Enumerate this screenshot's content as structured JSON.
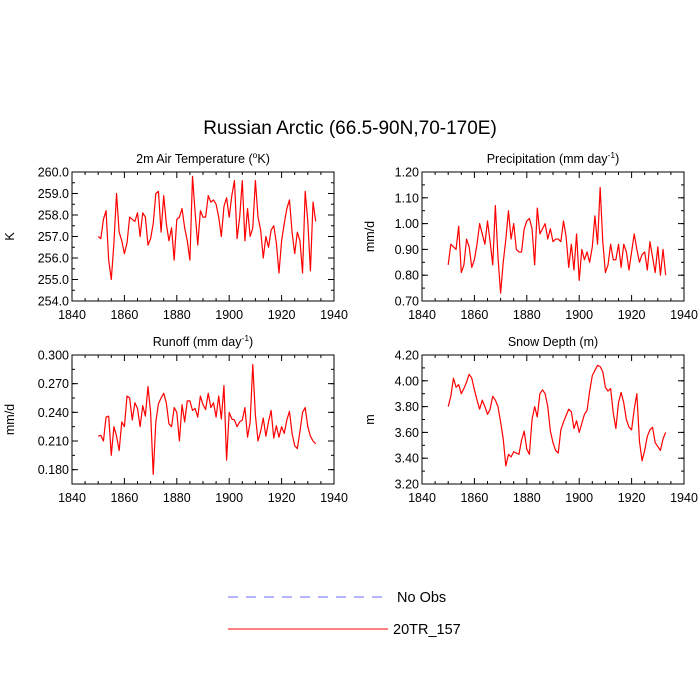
{
  "title": "Russian Arctic (66.5-90N,70-170E)",
  "legend": [
    {
      "label": "No Obs",
      "color": "#6b6bff",
      "dashed": true
    },
    {
      "label": "20TR_157",
      "color": "#ff0000",
      "dashed": false
    }
  ],
  "chart_data": [
    {
      "type": "line",
      "title_main": "2m Air Temperature (",
      "title_sup": "o",
      "title_tail": "K)",
      "ylabel": "K",
      "xlim": [
        1840,
        1940
      ],
      "ylim": [
        254,
        260
      ],
      "xticks": [
        1840,
        1860,
        1880,
        1900,
        1920,
        1940
      ],
      "yticks": [
        "254.0",
        "255.0",
        "256.0",
        "257.0",
        "258.0",
        "259.0",
        "260.0"
      ],
      "ytick_values": [
        254,
        255,
        256,
        257,
        258,
        259,
        260
      ],
      "series": [
        {
          "name": "20TR_157",
          "color": "#ff0000",
          "x": [
            1850,
            1851,
            1852,
            1853,
            1854,
            1855,
            1856,
            1857,
            1858,
            1859,
            1860,
            1861,
            1862,
            1863,
            1864,
            1865,
            1866,
            1867,
            1868,
            1869,
            1870,
            1871,
            1872,
            1873,
            1874,
            1875,
            1876,
            1877,
            1878,
            1879,
            1880,
            1881,
            1882,
            1883,
            1884,
            1885,
            1886,
            1887,
            1888,
            1889,
            1890,
            1891,
            1892,
            1893,
            1894,
            1895,
            1896,
            1897,
            1898,
            1899,
            1900,
            1901,
            1902,
            1903,
            1904,
            1905,
            1906,
            1907,
            1908,
            1909,
            1910,
            1911,
            1912,
            1913,
            1914,
            1915,
            1916,
            1917,
            1918,
            1919,
            1920,
            1921,
            1922,
            1923,
            1924,
            1925,
            1926,
            1927,
            1928,
            1929,
            1930,
            1931,
            1932,
            1933
          ],
          "values": [
            257.0,
            256.9,
            257.8,
            258.2,
            255.9,
            255.0,
            256.7,
            259.0,
            257.2,
            256.8,
            256.2,
            256.7,
            257.9,
            257.8,
            257.7,
            258.1,
            257.0,
            258.1,
            257.9,
            256.6,
            256.9,
            257.6,
            259.0,
            259.1,
            257.2,
            258.9,
            257.6,
            256.8,
            257.4,
            255.9,
            257.8,
            257.9,
            258.3,
            257.4,
            256.8,
            255.9,
            259.8,
            258.1,
            256.6,
            258.2,
            257.9,
            257.9,
            258.9,
            258.6,
            258.7,
            258.5,
            257.9,
            257.0,
            258.4,
            258.8,
            257.9,
            258.9,
            259.6,
            256.9,
            257.9,
            259.6,
            256.8,
            258.3,
            257.0,
            257.4,
            259.6,
            257.9,
            257.3,
            256.0,
            257.0,
            256.5,
            257.3,
            257.5,
            256.7,
            255.3,
            256.8,
            257.6,
            258.3,
            258.7,
            257.2,
            256.2,
            257.2,
            256.8,
            255.3,
            259.1,
            257.7,
            255.4,
            258.6,
            257.7
          ]
        }
      ]
    },
    {
      "type": "line",
      "title_main": "Precipitation (mm day",
      "title_sup": "-1",
      "title_tail": ")",
      "ylabel": "mm/d",
      "xlim": [
        1840,
        1940
      ],
      "ylim": [
        0.7,
        1.2
      ],
      "xticks": [
        1840,
        1860,
        1880,
        1900,
        1920,
        1940
      ],
      "yticks": [
        "0.70",
        "0.80",
        "0.90",
        "1.00",
        "1.10",
        "1.20"
      ],
      "ytick_values": [
        0.7,
        0.8,
        0.9,
        1.0,
        1.1,
        1.2
      ],
      "series": [
        {
          "name": "20TR_157",
          "color": "#ff0000",
          "x": [
            1850,
            1851,
            1852,
            1853,
            1854,
            1855,
            1856,
            1857,
            1858,
            1859,
            1860,
            1861,
            1862,
            1863,
            1864,
            1865,
            1866,
            1867,
            1868,
            1869,
            1870,
            1871,
            1872,
            1873,
            1874,
            1875,
            1876,
            1877,
            1878,
            1879,
            1880,
            1881,
            1882,
            1883,
            1884,
            1885,
            1886,
            1887,
            1888,
            1889,
            1890,
            1891,
            1892,
            1893,
            1894,
            1895,
            1896,
            1897,
            1898,
            1899,
            1900,
            1901,
            1902,
            1903,
            1904,
            1905,
            1906,
            1907,
            1908,
            1909,
            1910,
            1911,
            1912,
            1913,
            1914,
            1915,
            1916,
            1917,
            1918,
            1919,
            1920,
            1921,
            1922,
            1923,
            1924,
            1925,
            1926,
            1927,
            1928,
            1929,
            1930,
            1931,
            1932,
            1933
          ],
          "values": [
            0.84,
            0.92,
            0.91,
            0.9,
            0.99,
            0.81,
            0.84,
            0.94,
            0.91,
            0.83,
            0.86,
            0.92,
            1.0,
            0.96,
            0.92,
            1.01,
            0.93,
            0.84,
            1.07,
            0.87,
            0.73,
            0.85,
            0.94,
            1.05,
            0.94,
            1.0,
            0.9,
            0.89,
            0.89,
            0.98,
            1.01,
            1.02,
            0.98,
            0.84,
            1.06,
            0.96,
            0.98,
            1.0,
            0.94,
            0.98,
            0.93,
            0.94,
            0.94,
            0.93,
            1.01,
            0.95,
            0.83,
            0.92,
            0.82,
            0.96,
            0.78,
            0.9,
            0.86,
            0.89,
            0.85,
            0.91,
            1.03,
            0.92,
            1.14,
            0.93,
            0.81,
            0.84,
            0.92,
            0.86,
            0.86,
            0.92,
            0.83,
            0.92,
            0.89,
            0.82,
            0.89,
            0.96,
            0.9,
            0.85,
            0.88,
            0.89,
            0.82,
            0.93,
            0.87,
            0.81,
            0.91,
            0.8,
            0.9,
            0.8
          ]
        }
      ]
    },
    {
      "type": "line",
      "title_main": "Runoff (mm day",
      "title_sup": "-1",
      "title_tail": ")",
      "ylabel": "mm/d",
      "xlim": [
        1840,
        1940
      ],
      "ylim": [
        0.165,
        0.3
      ],
      "xticks": [
        1840,
        1860,
        1880,
        1900,
        1920,
        1940
      ],
      "yticks": [
        "0.180",
        "0.210",
        "0.240",
        "0.270",
        "0.300"
      ],
      "ytick_values": [
        0.18,
        0.21,
        0.24,
        0.27,
        0.3
      ],
      "series": [
        {
          "name": "20TR_157",
          "color": "#ff0000",
          "x": [
            1850,
            1851,
            1852,
            1853,
            1854,
            1855,
            1856,
            1857,
            1858,
            1859,
            1860,
            1861,
            1862,
            1863,
            1864,
            1865,
            1866,
            1867,
            1868,
            1869,
            1870,
            1871,
            1872,
            1873,
            1874,
            1875,
            1876,
            1877,
            1878,
            1879,
            1880,
            1881,
            1882,
            1883,
            1884,
            1885,
            1886,
            1887,
            1888,
            1889,
            1890,
            1891,
            1892,
            1893,
            1894,
            1895,
            1896,
            1897,
            1898,
            1899,
            1900,
            1901,
            1902,
            1903,
            1904,
            1905,
            1906,
            1907,
            1908,
            1909,
            1910,
            1911,
            1912,
            1913,
            1914,
            1915,
            1916,
            1917,
            1918,
            1919,
            1920,
            1921,
            1922,
            1923,
            1924,
            1925,
            1926,
            1927,
            1928,
            1929,
            1930,
            1931,
            1932,
            1933
          ],
          "values": [
            0.215,
            0.216,
            0.21,
            0.235,
            0.236,
            0.195,
            0.225,
            0.215,
            0.2,
            0.23,
            0.225,
            0.257,
            0.255,
            0.232,
            0.25,
            0.244,
            0.225,
            0.247,
            0.236,
            0.267,
            0.24,
            0.175,
            0.23,
            0.249,
            0.255,
            0.26,
            0.25,
            0.228,
            0.225,
            0.245,
            0.24,
            0.21,
            0.248,
            0.23,
            0.252,
            0.252,
            0.242,
            0.244,
            0.235,
            0.257,
            0.248,
            0.243,
            0.26,
            0.245,
            0.25,
            0.235,
            0.257,
            0.233,
            0.268,
            0.19,
            0.24,
            0.233,
            0.232,
            0.225,
            0.23,
            0.232,
            0.245,
            0.214,
            0.23,
            0.29,
            0.237,
            0.21,
            0.22,
            0.234,
            0.215,
            0.23,
            0.242,
            0.213,
            0.226,
            0.214,
            0.225,
            0.218,
            0.232,
            0.241,
            0.218,
            0.205,
            0.202,
            0.22,
            0.24,
            0.245,
            0.225,
            0.215,
            0.21,
            0.207
          ]
        }
      ]
    },
    {
      "type": "line",
      "title_main": "Snow Depth (m)",
      "title_sup": "",
      "title_tail": "",
      "ylabel": "m",
      "xlim": [
        1840,
        1940
      ],
      "ylim": [
        3.2,
        4.2
      ],
      "xticks": [
        1840,
        1860,
        1880,
        1900,
        1920,
        1940
      ],
      "yticks": [
        "3.20",
        "3.40",
        "3.60",
        "3.80",
        "4.00",
        "4.20"
      ],
      "ytick_values": [
        3.2,
        3.4,
        3.6,
        3.8,
        4.0,
        4.2
      ],
      "series": [
        {
          "name": "20TR_157",
          "color": "#ff0000",
          "x": [
            1850,
            1851,
            1852,
            1853,
            1854,
            1855,
            1856,
            1857,
            1858,
            1859,
            1860,
            1861,
            1862,
            1863,
            1864,
            1865,
            1866,
            1867,
            1868,
            1869,
            1870,
            1871,
            1872,
            1873,
            1874,
            1875,
            1876,
            1877,
            1878,
            1879,
            1880,
            1881,
            1882,
            1883,
            1884,
            1885,
            1886,
            1887,
            1888,
            1889,
            1890,
            1891,
            1892,
            1893,
            1894,
            1895,
            1896,
            1897,
            1898,
            1899,
            1900,
            1901,
            1902,
            1903,
            1904,
            1905,
            1906,
            1907,
            1908,
            1909,
            1910,
            1911,
            1912,
            1913,
            1914,
            1915,
            1916,
            1917,
            1918,
            1919,
            1920,
            1921,
            1922,
            1923,
            1924,
            1925,
            1926,
            1927,
            1928,
            1929,
            1930,
            1931,
            1932,
            1933
          ],
          "values": [
            3.8,
            3.88,
            4.02,
            3.95,
            3.97,
            3.9,
            3.94,
            3.99,
            4.05,
            4.02,
            3.93,
            3.85,
            3.78,
            3.85,
            3.8,
            3.74,
            3.78,
            3.88,
            3.85,
            3.8,
            3.68,
            3.55,
            3.34,
            3.43,
            3.41,
            3.45,
            3.44,
            3.43,
            3.54,
            3.61,
            3.47,
            3.43,
            3.7,
            3.8,
            3.72,
            3.9,
            3.93,
            3.9,
            3.8,
            3.61,
            3.52,
            3.46,
            3.44,
            3.62,
            3.68,
            3.73,
            3.78,
            3.76,
            3.63,
            3.69,
            3.6,
            3.67,
            3.74,
            3.77,
            3.92,
            4.04,
            4.08,
            4.12,
            4.11,
            4.07,
            3.95,
            3.92,
            3.94,
            3.75,
            3.63,
            3.83,
            3.91,
            3.83,
            3.7,
            3.64,
            3.62,
            3.78,
            3.9,
            3.53,
            3.38,
            3.46,
            3.57,
            3.62,
            3.64,
            3.52,
            3.49,
            3.46,
            3.55,
            3.6
          ]
        }
      ]
    }
  ]
}
